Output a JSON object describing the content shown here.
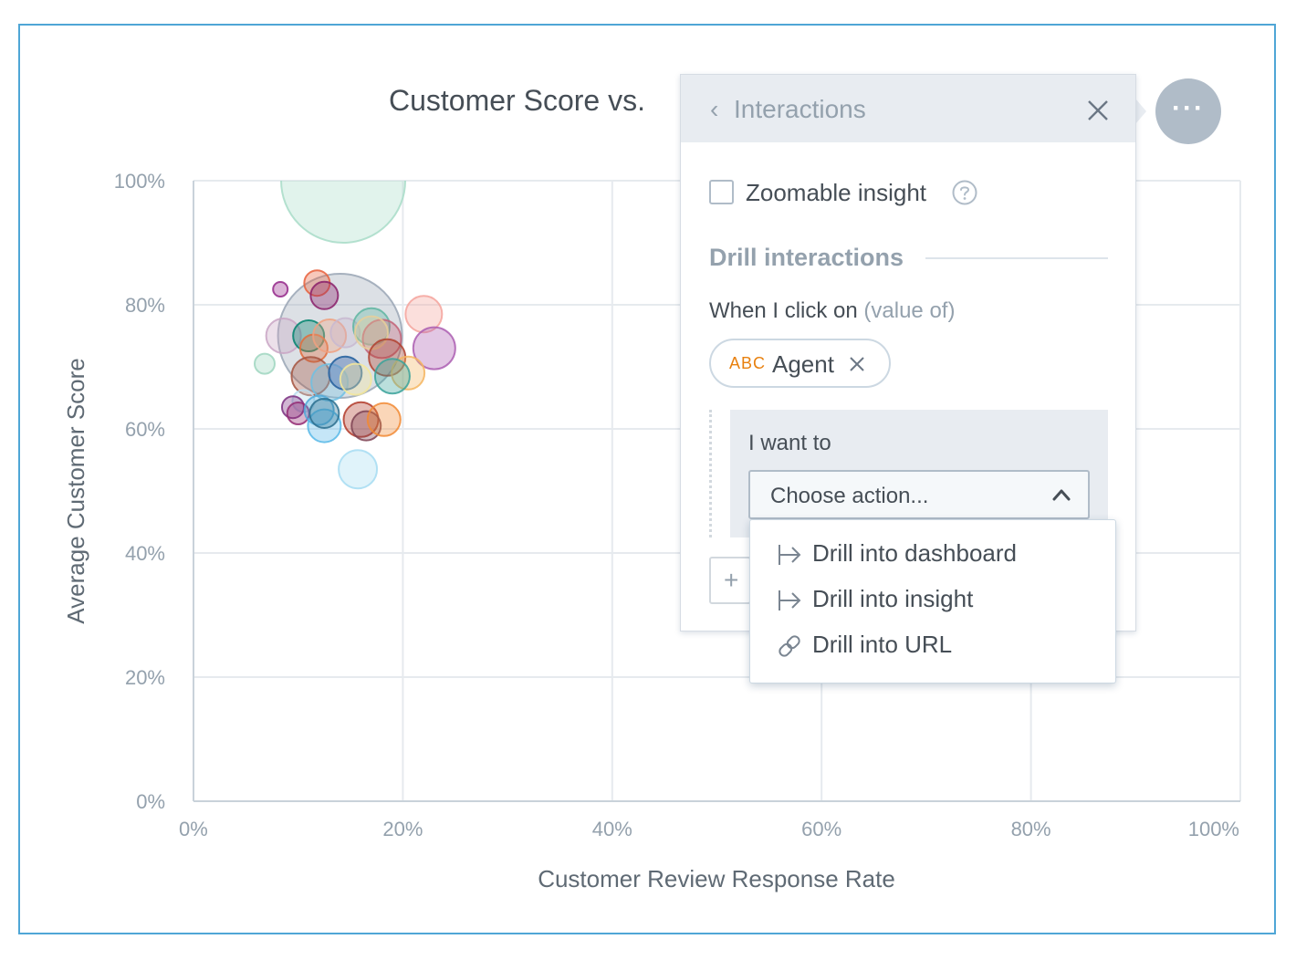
{
  "chart": {
    "title": "Customer Score vs.",
    "xlabel": "Customer Review Response Rate",
    "ylabel": "Average Customer Score",
    "xticks": [
      "0%",
      "20%",
      "40%",
      "60%",
      "80%",
      "100%"
    ],
    "yticks": [
      "0%",
      "20%",
      "40%",
      "60%",
      "80%",
      "100%"
    ]
  },
  "chart_data": {
    "type": "scatter",
    "title": "Customer Score vs.",
    "xlabel": "Customer Review Response Rate",
    "ylabel": "Average Customer Score",
    "xlim": [
      0,
      100
    ],
    "ylim": [
      0,
      100
    ],
    "grid": true,
    "points": [
      {
        "x": 14.3,
        "y": 100,
        "r": 68,
        "color": "#a8dcc8"
      },
      {
        "x": 14.0,
        "y": 75,
        "r": 68,
        "color": "#9aa6b5"
      },
      {
        "x": 11.8,
        "y": 83.5,
        "r": 14,
        "color": "#e8603c"
      },
      {
        "x": 8.3,
        "y": 82.5,
        "r": 8,
        "color": "#94278a"
      },
      {
        "x": 12.5,
        "y": 81.5,
        "r": 15,
        "color": "#8a1f6a"
      },
      {
        "x": 22.0,
        "y": 78.5,
        "r": 20,
        "color": "#f4a39c"
      },
      {
        "x": 23.0,
        "y": 73.0,
        "r": 23,
        "color": "#ab5eb1"
      },
      {
        "x": 8.6,
        "y": 75.0,
        "r": 19,
        "color": "#c9a5c4"
      },
      {
        "x": 11.0,
        "y": 75.0,
        "r": 17,
        "color": "#00826d"
      },
      {
        "x": 11.5,
        "y": 73.0,
        "r": 15,
        "color": "#e26b39"
      },
      {
        "x": 13.0,
        "y": 75.0,
        "r": 18,
        "color": "#f0a07f"
      },
      {
        "x": 14.5,
        "y": 75.5,
        "r": 16,
        "color": "#c8b8d0"
      },
      {
        "x": 17.0,
        "y": 76.5,
        "r": 20,
        "color": "#5fb5a1"
      },
      {
        "x": 18.0,
        "y": 74.5,
        "r": 21,
        "color": "#c26277"
      },
      {
        "x": 17.0,
        "y": 75.5,
        "r": 18,
        "color": "#e8cf9a"
      },
      {
        "x": 18.5,
        "y": 71.5,
        "r": 20,
        "color": "#b0412f"
      },
      {
        "x": 20.5,
        "y": 69.0,
        "r": 18,
        "color": "#f4b55f"
      },
      {
        "x": 19.0,
        "y": 68.5,
        "r": 19,
        "color": "#3aa29a"
      },
      {
        "x": 6.8,
        "y": 70.5,
        "r": 11,
        "color": "#9fd6bf"
      },
      {
        "x": 11.2,
        "y": 68.5,
        "r": 21,
        "color": "#a55440"
      },
      {
        "x": 13.0,
        "y": 67.5,
        "r": 20,
        "color": "#6fbfe3"
      },
      {
        "x": 14.5,
        "y": 69.0,
        "r": 18,
        "color": "#d9c9f0"
      },
      {
        "x": 14.5,
        "y": 69.0,
        "r": 18,
        "color": "#1d5f9a"
      },
      {
        "x": 15.5,
        "y": 68.0,
        "r": 17,
        "color": "#f5e89a"
      },
      {
        "x": 10.5,
        "y": 64.5,
        "r": 12,
        "color": "#b9dcef"
      },
      {
        "x": 9.5,
        "y": 63.5,
        "r": 12,
        "color": "#7a2f80"
      },
      {
        "x": 10.0,
        "y": 62.5,
        "r": 12,
        "color": "#942b74"
      },
      {
        "x": 12.0,
        "y": 63.0,
        "r": 16,
        "color": "#4da8d8"
      },
      {
        "x": 12.5,
        "y": 60.5,
        "r": 18,
        "color": "#58b8e8"
      },
      {
        "x": 12.5,
        "y": 62.5,
        "r": 16,
        "color": "#2c6f8e"
      },
      {
        "x": 16.0,
        "y": 61.5,
        "r": 19,
        "color": "#b23b2a"
      },
      {
        "x": 16.5,
        "y": 60.5,
        "r": 16,
        "color": "#7e4252"
      },
      {
        "x": 18.2,
        "y": 61.5,
        "r": 18,
        "color": "#f18a34"
      },
      {
        "x": 15.7,
        "y": 53.5,
        "r": 21,
        "color": "#a6dcf2"
      }
    ]
  },
  "panel": {
    "back_chevron": "‹",
    "title": "Interactions",
    "zoomable_label": "Zoomable insight",
    "zoomable_checked": false,
    "drill_title": "Drill interactions",
    "when_label": "When I click on",
    "when_muted": "(value of)",
    "chip_type": "ABC",
    "chip_label": "Agent",
    "want_label": "I want to",
    "select_value": "Choose action...",
    "add_plus": "+"
  },
  "menu": {
    "items": [
      {
        "label": "Drill into dashboard",
        "icon": "drill-arrow-icon"
      },
      {
        "label": "Drill into insight",
        "icon": "drill-arrow-icon"
      },
      {
        "label": "Drill into URL",
        "icon": "link-icon"
      }
    ]
  },
  "more_button": {
    "label": "···"
  },
  "colors": {
    "frame_border": "#4fa6d6",
    "panel_header_bg": "#e8ecf1",
    "muted_text": "#94a1ad",
    "chip_type": "#e8800e",
    "grid": "#e6eaee"
  }
}
